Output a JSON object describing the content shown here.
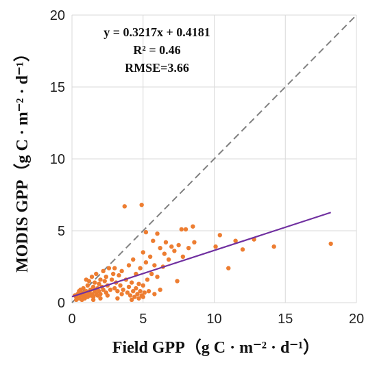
{
  "chart_data": {
    "type": "scatter",
    "xlabel": "Field GPP（g C · m⁻² · d⁻¹）",
    "ylabel": "MODIS GPP（g C · m⁻² · d⁻¹）",
    "xlim": [
      0,
      20
    ],
    "ylim": [
      0,
      20
    ],
    "xticks": [
      "0",
      "5",
      "10",
      "15",
      "20"
    ],
    "yticks": [
      "0",
      "5",
      "10",
      "15",
      "20"
    ],
    "grid": true,
    "annotations": [
      "y = 0.3217x + 0.4181",
      "R² = 0.46",
      "RMSE=3.66"
    ],
    "fit_line": {
      "slope": 0.3217,
      "intercept": 0.4181,
      "x_range": [
        0,
        18.2
      ]
    },
    "reference_line": {
      "slope": 1,
      "intercept": 0
    },
    "colors": {
      "points": "#ed7d31",
      "fit": "#7030a0",
      "reference": "#808080",
      "grid": "#d9d9d9"
    },
    "points": [
      [
        0.2,
        0.5
      ],
      [
        0.3,
        0.4
      ],
      [
        0.4,
        0.6
      ],
      [
        0.5,
        0.3
      ],
      [
        0.5,
        0.8
      ],
      [
        0.6,
        0.5
      ],
      [
        0.7,
        0.2
      ],
      [
        0.7,
        0.7
      ],
      [
        0.8,
        0.4
      ],
      [
        0.8,
        1.0
      ],
      [
        0.9,
        0.6
      ],
      [
        0.9,
        0.3
      ],
      [
        1.0,
        0.8
      ],
      [
        1.0,
        0.5
      ],
      [
        1.1,
        1.2
      ],
      [
        1.1,
        0.4
      ],
      [
        1.2,
        0.7
      ],
      [
        1.2,
        1.5
      ],
      [
        1.3,
        0.5
      ],
      [
        1.3,
        0.9
      ],
      [
        1.4,
        1.8
      ],
      [
        1.4,
        0.6
      ],
      [
        1.5,
        1.1
      ],
      [
        1.5,
        0.4
      ],
      [
        1.6,
        0.8
      ],
      [
        1.6,
        1.4
      ],
      [
        1.7,
        0.6
      ],
      [
        1.7,
        2.0
      ],
      [
        1.8,
        1.0
      ],
      [
        1.8,
        0.5
      ],
      [
        1.9,
        1.3
      ],
      [
        1.9,
        0.8
      ],
      [
        2.0,
        1.6
      ],
      [
        2.0,
        0.6
      ],
      [
        2.1,
        1.1
      ],
      [
        2.2,
        0.9
      ],
      [
        2.2,
        2.2
      ],
      [
        2.3,
        1.5
      ],
      [
        2.4,
        0.7
      ],
      [
        2.4,
        1.8
      ],
      [
        2.5,
        1.2
      ],
      [
        2.6,
        2.4
      ],
      [
        2.7,
        0.9
      ],
      [
        2.8,
        1.6
      ],
      [
        2.9,
        2.0
      ],
      [
        3.0,
        1.0
      ],
      [
        3.0,
        2.4
      ],
      [
        3.1,
        1.4
      ],
      [
        3.2,
        0.8
      ],
      [
        3.3,
        1.9
      ],
      [
        3.4,
        1.2
      ],
      [
        3.5,
        2.2
      ],
      [
        3.6,
        0.9
      ],
      [
        3.7,
        6.7
      ],
      [
        3.8,
        1.6
      ],
      [
        3.9,
        0.7
      ],
      [
        4.0,
        1.1
      ],
      [
        4.0,
        2.6
      ],
      [
        4.1,
        0.5
      ],
      [
        4.2,
        1.4
      ],
      [
        4.3,
        0.8
      ],
      [
        4.3,
        3.0
      ],
      [
        4.4,
        0.4
      ],
      [
        4.5,
        1.0
      ],
      [
        4.5,
        2.0
      ],
      [
        4.6,
        0.6
      ],
      [
        4.7,
        1.3
      ],
      [
        4.7,
        0.3
      ],
      [
        4.8,
        2.4
      ],
      [
        4.8,
        0.8
      ],
      [
        4.9,
        6.8
      ],
      [
        4.9,
        0.5
      ],
      [
        5.0,
        1.2
      ],
      [
        5.0,
        3.5
      ],
      [
        5.1,
        0.7
      ],
      [
        5.2,
        2.8
      ],
      [
        5.2,
        4.9
      ],
      [
        5.3,
        1.6
      ],
      [
        5.4,
        0.8
      ],
      [
        5.5,
        3.2
      ],
      [
        5.6,
        2.0
      ],
      [
        5.7,
        4.3
      ],
      [
        5.8,
        2.6
      ],
      [
        6.0,
        4.8
      ],
      [
        6.0,
        1.8
      ],
      [
        6.2,
        3.8
      ],
      [
        6.4,
        2.5
      ],
      [
        6.5,
        3.4
      ],
      [
        6.6,
        4.2
      ],
      [
        6.8,
        3.0
      ],
      [
        7.0,
        3.9
      ],
      [
        7.2,
        3.6
      ],
      [
        7.4,
        1.5
      ],
      [
        7.5,
        4.0
      ],
      [
        7.7,
        5.1
      ],
      [
        7.8,
        3.2
      ],
      [
        8.0,
        5.1
      ],
      [
        8.2,
        3.8
      ],
      [
        8.5,
        5.3
      ],
      [
        8.6,
        4.2
      ],
      [
        10.1,
        3.9
      ],
      [
        10.4,
        4.7
      ],
      [
        11.0,
        2.4
      ],
      [
        11.5,
        4.3
      ],
      [
        12.0,
        3.7
      ],
      [
        12.8,
        4.4
      ],
      [
        14.2,
        3.9
      ],
      [
        18.2,
        4.1
      ],
      [
        0.3,
        0.2
      ],
      [
        0.6,
        0.9
      ],
      [
        1.0,
        1.6
      ],
      [
        1.5,
        0.2
      ],
      [
        2.0,
        0.3
      ],
      [
        2.5,
        0.5
      ],
      [
        3.2,
        0.3
      ],
      [
        3.5,
        0.6
      ],
      [
        4.2,
        0.2
      ],
      [
        5.0,
        0.4
      ],
      [
        5.8,
        0.6
      ],
      [
        6.2,
        0.9
      ]
    ]
  }
}
